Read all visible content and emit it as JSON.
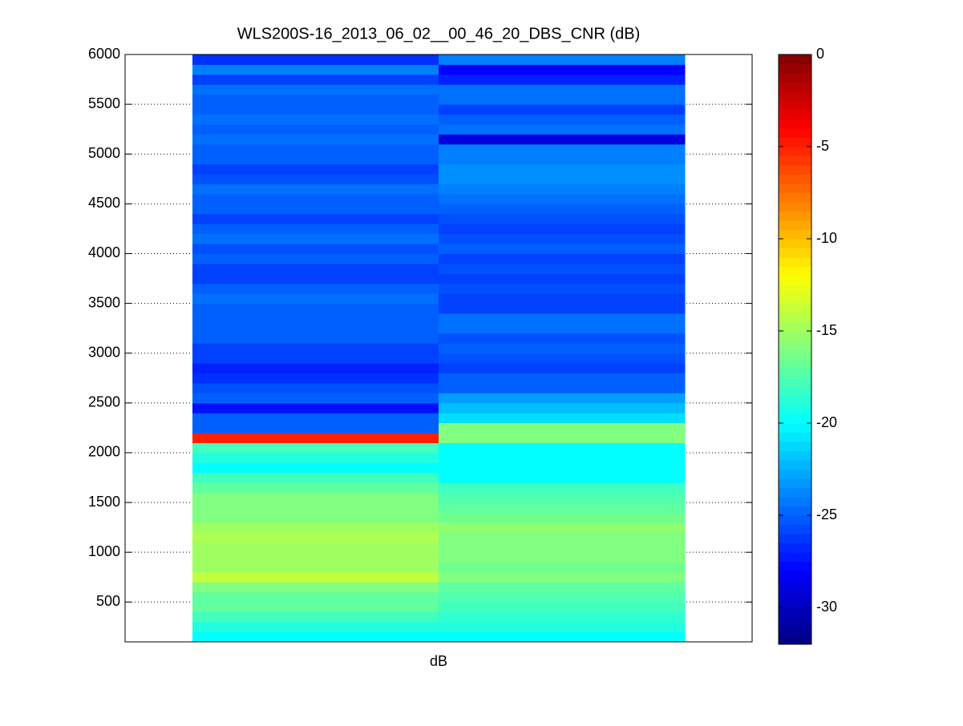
{
  "chart_data": {
    "type": "heatmap",
    "title": "WLS200S-16_2013_06_02__00_46_20_DBS_CNR (dB)",
    "x_label": "dB",
    "y_edges": [
      100,
      200,
      300,
      400,
      500,
      600,
      700,
      800,
      900,
      1000,
      1100,
      1200,
      1300,
      1400,
      1500,
      1600,
      1700,
      1800,
      1900,
      2000,
      2100,
      2200,
      2300,
      2400,
      2500,
      2600,
      2700,
      2800,
      2900,
      3000,
      3100,
      3200,
      3300,
      3400,
      3500,
      3600,
      3700,
      3800,
      3900,
      4000,
      4100,
      4200,
      4300,
      4400,
      4500,
      4600,
      4700,
      4800,
      4900,
      5000,
      5100,
      5200,
      5300,
      5400,
      5500,
      5600,
      5700,
      5800,
      5900,
      6000
    ],
    "columns": [
      [
        -20,
        -19,
        -18,
        -17,
        -17,
        -16,
        -14,
        -15,
        -15,
        -15,
        -14.5,
        -15,
        -16,
        -16,
        -16,
        -17,
        -18,
        -20,
        -19,
        -18,
        -5,
        -25,
        -25,
        -27.5,
        -25,
        -25.5,
        -26.5,
        -27,
        -26,
        -26,
        -25,
        -25,
        -25,
        -25,
        -24.5,
        -25,
        -26,
        -26,
        -25,
        -25.5,
        -24.5,
        -25,
        -26,
        -25,
        -25,
        -24.5,
        -25.5,
        -26,
        -25,
        -25,
        -24.5,
        -25,
        -24.5,
        -25,
        -25,
        -24.5,
        -26,
        -24,
        -26.5
      ],
      [
        -20,
        -19,
        -18.5,
        -18,
        -17.5,
        -17,
        -16,
        -16.5,
        -16,
        -16,
        -16,
        -15.5,
        -16.5,
        -17,
        -17.5,
        -18,
        -20,
        -20,
        -20,
        -20,
        -16,
        -16,
        -21,
        -22,
        -23,
        -25,
        -25,
        -26,
        -25.5,
        -25,
        -25.5,
        -24.5,
        -24.5,
        -26,
        -26,
        -25.5,
        -26,
        -25.5,
        -26,
        -25,
        -25.5,
        -26,
        -25.5,
        -25,
        -24.5,
        -24,
        -23.5,
        -23.5,
        -24,
        -24,
        -29,
        -24.5,
        -25,
        -26,
        -24.5,
        -24.5,
        -27,
        -28,
        -24
      ]
    ],
    "ylim": [
      100,
      6000
    ],
    "yticks": [
      500,
      1000,
      1500,
      2000,
      2500,
      3000,
      3500,
      4000,
      4500,
      5000,
      5500,
      6000
    ],
    "grid": true,
    "colormap": "jet",
    "clim": [
      -32,
      0
    ],
    "cticks": [
      -30,
      -25,
      -20,
      -15,
      -10,
      -5,
      0
    ]
  }
}
